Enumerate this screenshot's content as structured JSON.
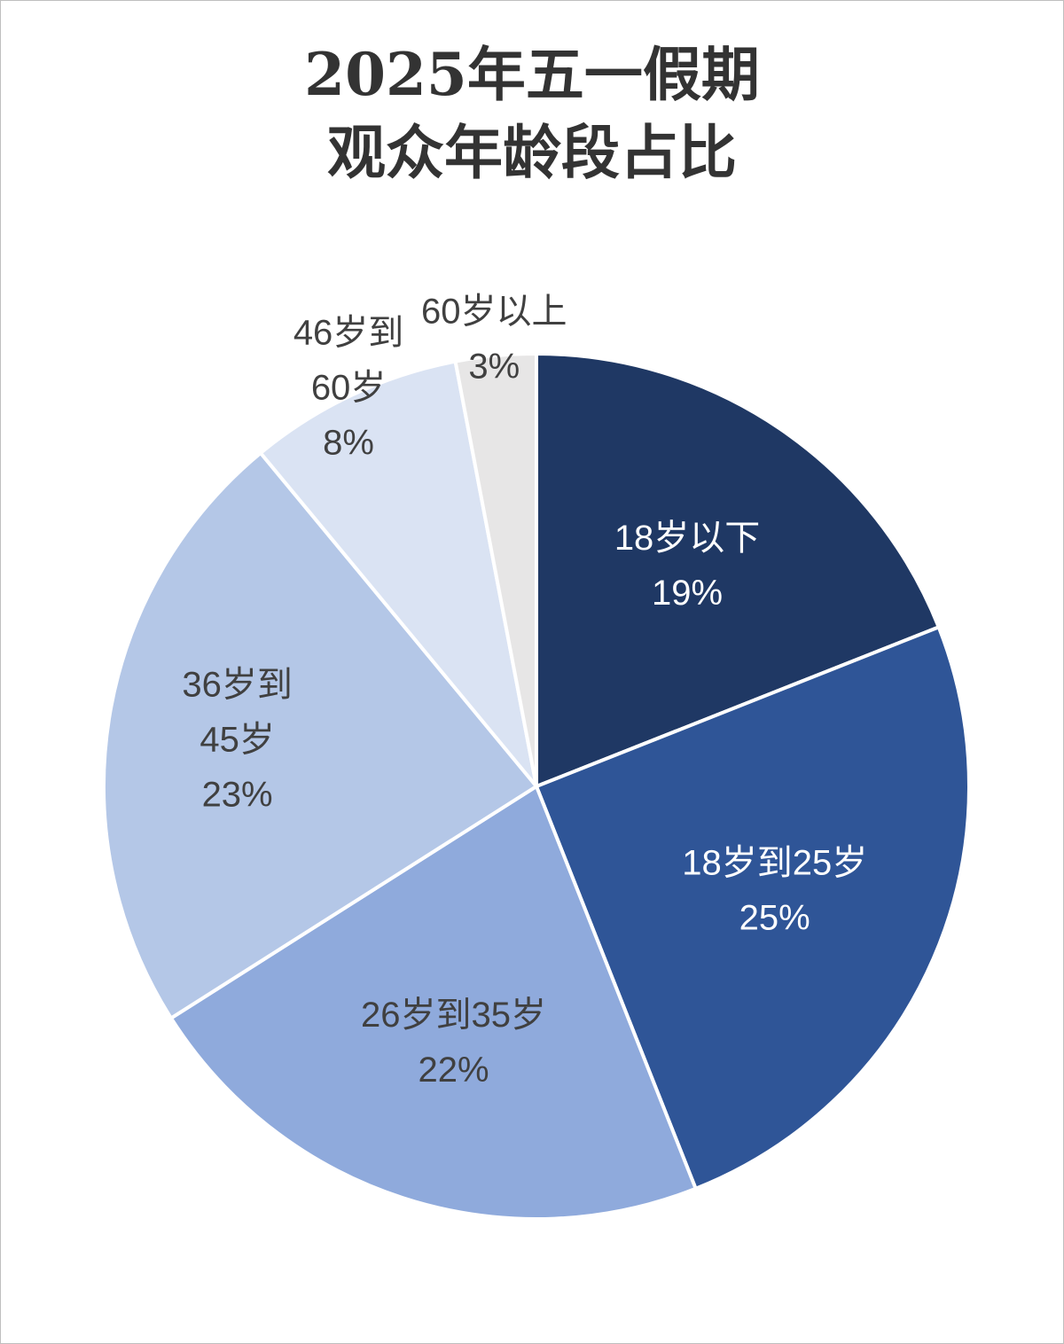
{
  "chart_data": {
    "type": "pie",
    "title_lines": [
      "2025年五一假期",
      "观众年龄段占比"
    ],
    "slices": [
      {
        "label_lines": [
          "18岁以下"
        ],
        "percent_label": "19%",
        "value": 19,
        "color": "#1f3864",
        "label_color": "#ffffff"
      },
      {
        "label_lines": [
          "18岁到25岁"
        ],
        "percent_label": "25%",
        "value": 25,
        "color": "#2f5597",
        "label_color": "#ffffff"
      },
      {
        "label_lines": [
          "26岁到35岁"
        ],
        "percent_label": "22%",
        "value": 22,
        "color": "#8faadc",
        "label_color": "#404040"
      },
      {
        "label_lines": [
          "36岁到",
          "45岁"
        ],
        "percent_label": "23%",
        "value": 23,
        "color": "#b4c7e7",
        "label_color": "#404040"
      },
      {
        "label_lines": [
          "46岁到",
          "60岁"
        ],
        "percent_label": "8%",
        "value": 8,
        "color": "#dae3f3",
        "label_color": "#404040"
      },
      {
        "label_lines": [
          "60岁以上"
        ],
        "percent_label": "3%",
        "value": 3,
        "color": "#e7e6e6",
        "label_color": "#404040"
      }
    ]
  }
}
